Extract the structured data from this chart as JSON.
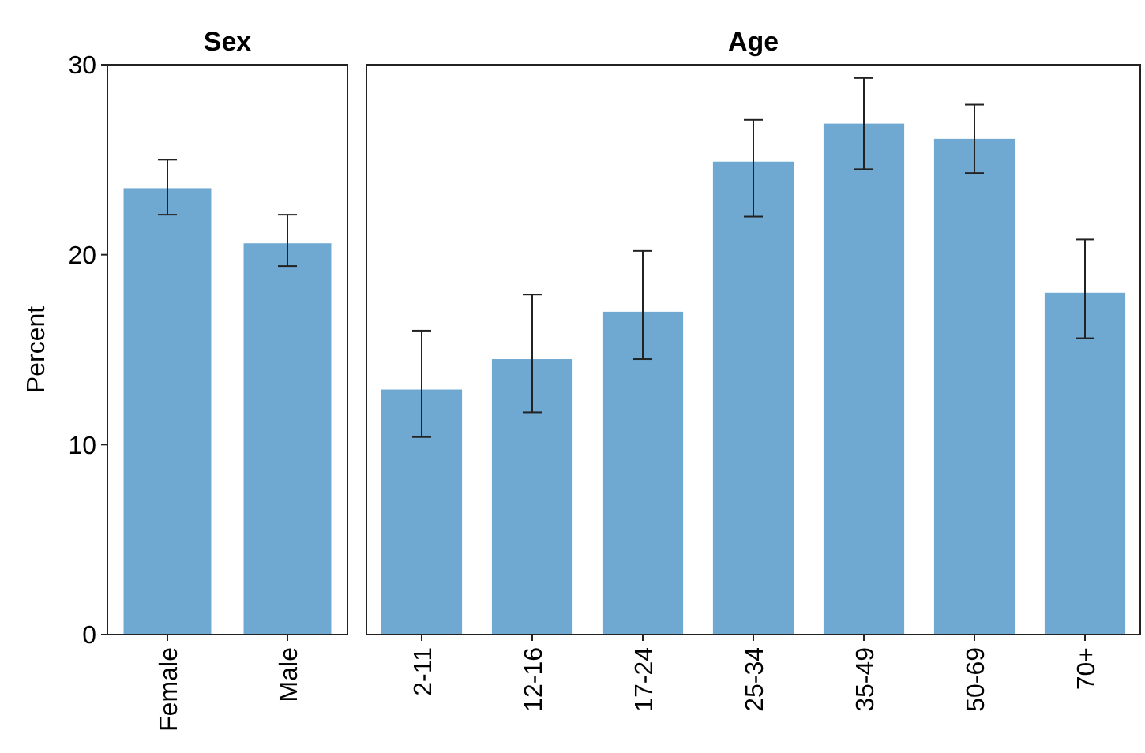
{
  "chart_data": [
    {
      "type": "bar",
      "title": "Sex",
      "ylabel": "Percent",
      "categories": [
        "Female",
        "Male"
      ],
      "values": [
        23.5,
        20.6
      ],
      "errors": [
        [
          22.1,
          25.0
        ],
        [
          19.4,
          22.1
        ]
      ],
      "color": "#6fa8d0",
      "ylim": [
        0,
        30
      ],
      "yticks": [
        0,
        10,
        20,
        30
      ],
      "grid": false
    },
    {
      "type": "bar",
      "title": "Age",
      "categories": [
        "2-11",
        "12-16",
        "17-24",
        "25-34",
        "35-49",
        "50-69",
        "70+"
      ],
      "values": [
        12.9,
        14.5,
        17.0,
        24.9,
        26.9,
        26.1,
        18.0
      ],
      "errors": [
        [
          10.4,
          16.0
        ],
        [
          11.7,
          17.9
        ],
        [
          14.5,
          20.2
        ],
        [
          22.0,
          27.1
        ],
        [
          24.5,
          29.3
        ],
        [
          24.3,
          27.9
        ],
        [
          15.6,
          20.8
        ]
      ],
      "color": "#6fa8d0",
      "ylim": [
        0,
        30
      ],
      "yticks": [
        0,
        10,
        20,
        30
      ],
      "grid": false,
      "tick_labels": "x"
    }
  ]
}
